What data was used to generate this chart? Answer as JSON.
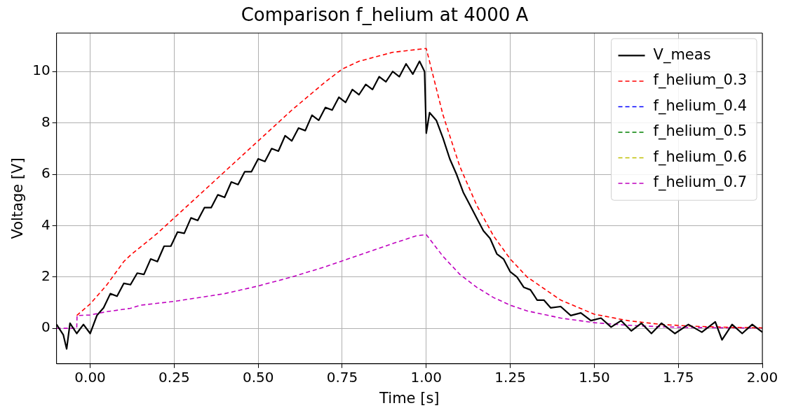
{
  "chart_data": {
    "type": "line",
    "title": "Comparison f_helium at 4000 A",
    "xlabel": "Time [s]",
    "ylabel": "Voltage [V]",
    "xlim": [
      -0.1,
      2.0
    ],
    "xticks": [
      {
        "value": 0,
        "label": "0.00"
      },
      {
        "value": 0.25,
        "label": "0.25"
      },
      {
        "value": 0.5,
        "label": "0.50"
      },
      {
        "value": 0.75,
        "label": "0.75"
      },
      {
        "value": 1,
        "label": "1.00"
      },
      {
        "value": 1.25,
        "label": "1.25"
      },
      {
        "value": 1.5,
        "label": "1.50"
      },
      {
        "value": 1.75,
        "label": "1.75"
      },
      {
        "value": 2,
        "label": "2.00"
      }
    ],
    "ylim": [
      -1.38,
      11.5
    ],
    "yticks": [
      0,
      2,
      4,
      6,
      8,
      10
    ],
    "grid": true,
    "legend": "top right",
    "marker": "none",
    "series": [
      {
        "name": "V_meas",
        "color": "#000000",
        "line_style": "solid",
        "x": [
          -0.1,
          -0.08,
          -0.07,
          -0.06,
          -0.04,
          -0.02,
          0,
          0.02,
          0.04,
          0.06,
          0.08,
          0.1,
          0.12,
          0.14,
          0.16,
          0.18,
          0.2,
          0.22,
          0.24,
          0.26,
          0.28,
          0.3,
          0.32,
          0.34,
          0.36,
          0.38,
          0.4,
          0.42,
          0.44,
          0.46,
          0.48,
          0.5,
          0.52,
          0.54,
          0.56,
          0.58,
          0.6,
          0.62,
          0.64,
          0.66,
          0.68,
          0.7,
          0.72,
          0.74,
          0.76,
          0.78,
          0.8,
          0.82,
          0.84,
          0.86,
          0.88,
          0.9,
          0.92,
          0.94,
          0.96,
          0.98,
          0.995,
          1.0,
          1.01,
          1.03,
          1.05,
          1.07,
          1.09,
          1.11,
          1.13,
          1.15,
          1.17,
          1.19,
          1.21,
          1.23,
          1.25,
          1.27,
          1.29,
          1.31,
          1.33,
          1.35,
          1.37,
          1.4,
          1.43,
          1.46,
          1.49,
          1.52,
          1.55,
          1.58,
          1.61,
          1.64,
          1.67,
          1.7,
          1.74,
          1.78,
          1.82,
          1.86,
          1.88,
          1.91,
          1.94,
          1.97,
          2.0
        ],
        "values": [
          0.15,
          -0.25,
          -0.8,
          0.2,
          -0.2,
          0.15,
          -0.2,
          0.5,
          0.8,
          1.35,
          1.25,
          1.75,
          1.7,
          2.15,
          2.1,
          2.7,
          2.6,
          3.2,
          3.2,
          3.75,
          3.7,
          4.3,
          4.2,
          4.7,
          4.7,
          5.2,
          5.1,
          5.7,
          5.6,
          6.1,
          6.1,
          6.6,
          6.5,
          7.0,
          6.9,
          7.5,
          7.3,
          7.8,
          7.7,
          8.3,
          8.1,
          8.6,
          8.5,
          9.0,
          8.8,
          9.3,
          9.1,
          9.5,
          9.3,
          9.8,
          9.6,
          10.0,
          9.8,
          10.3,
          9.9,
          10.4,
          10.0,
          7.6,
          8.4,
          8.1,
          7.4,
          6.6,
          6.0,
          5.3,
          4.8,
          4.3,
          3.8,
          3.5,
          2.9,
          2.7,
          2.2,
          2.0,
          1.6,
          1.5,
          1.1,
          1.1,
          0.8,
          0.85,
          0.5,
          0.6,
          0.3,
          0.4,
          0.05,
          0.3,
          -0.1,
          0.2,
          -0.2,
          0.2,
          -0.2,
          0.15,
          -0.15,
          0.25,
          -0.45,
          0.15,
          -0.2,
          0.15,
          -0.15
        ]
      },
      {
        "name": "f_helium_0.3",
        "color": "#ff0000",
        "line_style": "dashed",
        "x": [
          -0.04,
          0,
          0.05,
          0.1,
          0.12,
          0.2,
          0.3,
          0.4,
          0.5,
          0.6,
          0.7,
          0.75,
          0.8,
          0.9,
          1.0,
          1.05,
          1.1,
          1.15,
          1.2,
          1.25,
          1.3,
          1.4,
          1.5,
          1.6,
          1.7,
          1.8,
          1.9,
          2.0
        ],
        "values": [
          0.5,
          0.95,
          1.7,
          2.6,
          2.85,
          3.7,
          4.9,
          6.1,
          7.3,
          8.5,
          9.6,
          10.1,
          10.4,
          10.75,
          10.9,
          8.3,
          6.3,
          4.8,
          3.6,
          2.7,
          2.0,
          1.1,
          0.55,
          0.3,
          0.15,
          0.08,
          0.04,
          0.02
        ]
      },
      {
        "name": "f_helium_0.4",
        "color": "#0000ff",
        "line_style": "dashed"
      },
      {
        "name": "f_helium_0.5",
        "color": "#008000",
        "line_style": "dashed"
      },
      {
        "name": "f_helium_0.6",
        "color": "#bfbf00",
        "line_style": "dashed"
      },
      {
        "name": "f_helium_0.7",
        "color": "#bf00bf",
        "line_style": "dashed",
        "x": [
          -0.1,
          -0.04,
          -0.039,
          0,
          0.05,
          0.12,
          0.15,
          0.25,
          0.4,
          0.5,
          0.6,
          0.7,
          0.8,
          0.9,
          0.97,
          1.0,
          1.05,
          1.1,
          1.15,
          1.2,
          1.25,
          1.3,
          1.4,
          1.5,
          1.6,
          1.7,
          1.8,
          2.0
        ],
        "values": [
          0,
          0,
          0.5,
          0.52,
          0.65,
          0.78,
          0.9,
          1.05,
          1.35,
          1.65,
          2.0,
          2.4,
          2.85,
          3.3,
          3.6,
          3.65,
          2.8,
          2.1,
          1.6,
          1.2,
          0.9,
          0.68,
          0.4,
          0.22,
          0.12,
          0.06,
          0.03,
          0.01
        ]
      }
    ]
  }
}
